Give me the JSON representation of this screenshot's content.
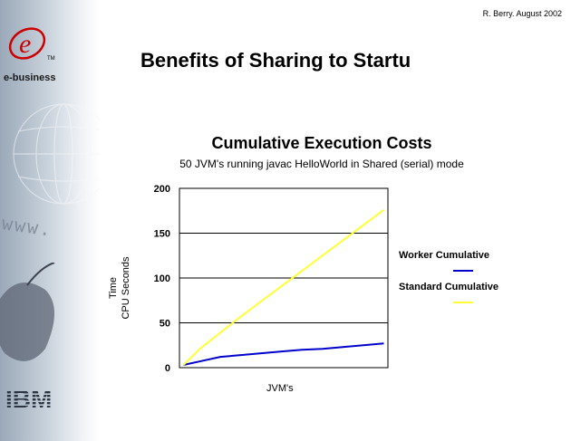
{
  "header": {
    "author": "R. Berry.  August 2002",
    "title": "Benefits of Sharing to Startu"
  },
  "sidebar": {
    "logo_letter": "e",
    "logo_tm": "TM",
    "brand": "e-business",
    "www_text": "www.",
    "company_logo": "IBM"
  },
  "colors": {
    "worker": "#0000cc",
    "standard": "#ffff33",
    "logo_red": "#cc0000"
  },
  "chart_data": {
    "type": "line",
    "title": "Cumulative Execution Costs",
    "subtitle": "50 JVM's running javac HelloWorld in Shared (serial) mode",
    "xlabel": "JVM's",
    "ylabel_line1": "Time",
    "ylabel_line2": "CPU Seconds",
    "xlim": [
      0,
      51
    ],
    "ylim": [
      0,
      200
    ],
    "yticks": [
      0,
      50,
      100,
      150,
      200
    ],
    "grid": true,
    "legend_position": "right",
    "x": [
      1,
      5,
      10,
      15,
      20,
      25,
      30,
      35,
      40,
      45,
      50
    ],
    "series": [
      {
        "name": "Worker Cumulative",
        "color": "#0000cc",
        "values": [
          3,
          7,
          12,
          14,
          16,
          18,
          20,
          21,
          23,
          25,
          27
        ]
      },
      {
        "name": "Standard Cumulative",
        "color": "#ffff33",
        "values": [
          3,
          21,
          39,
          57,
          74,
          91,
          108,
          125,
          142,
          159,
          176
        ]
      }
    ]
  }
}
